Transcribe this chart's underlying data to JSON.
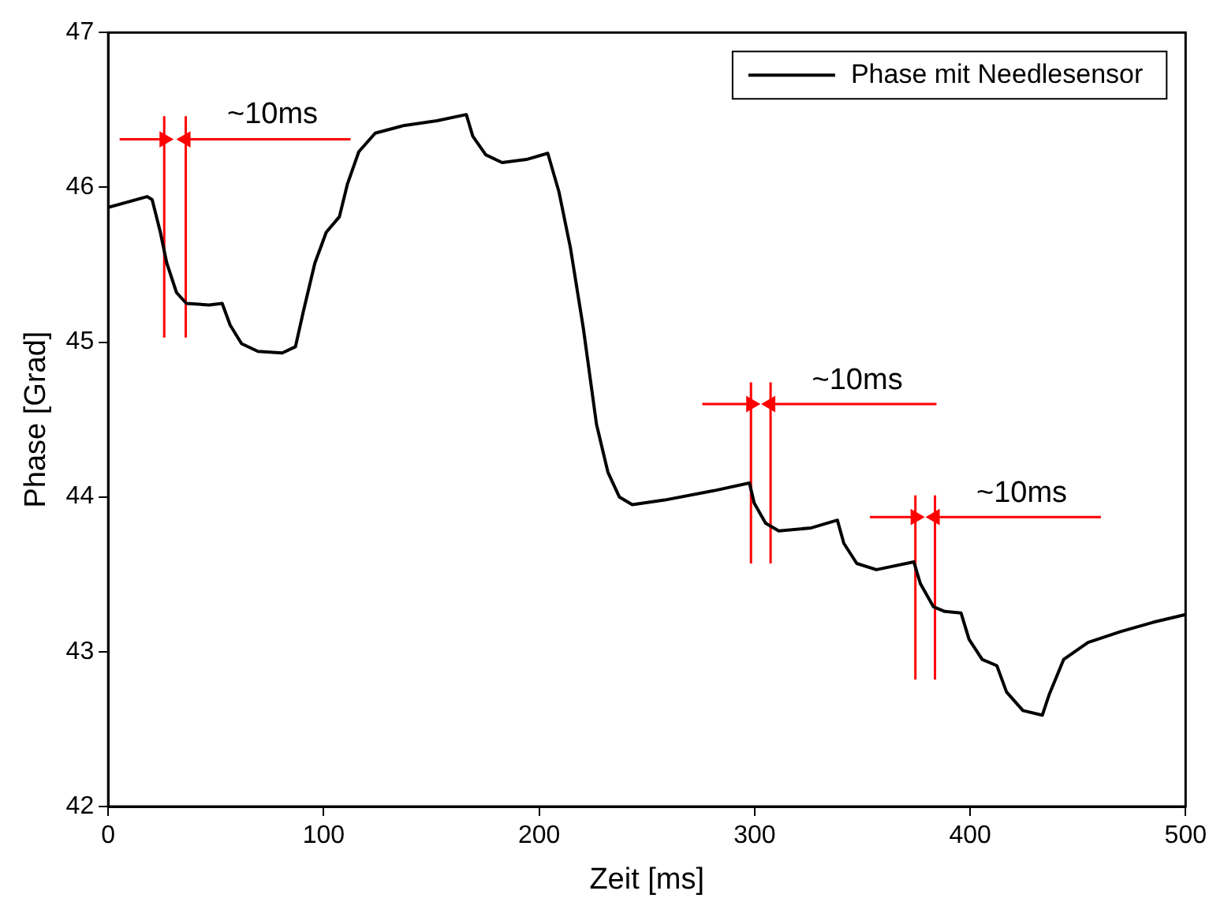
{
  "chart_data": {
    "type": "line",
    "xlabel": "Zeit [ms]",
    "ylabel": "Phase [Grad]",
    "xlim": [
      0,
      500
    ],
    "xticks": [
      0,
      100,
      200,
      300,
      400,
      500
    ],
    "ylim": [
      42,
      47
    ],
    "yticks": [
      42,
      43,
      44,
      45,
      46,
      47
    ],
    "grid": false,
    "legend": "top right",
    "marker": "none",
    "line_style": "solid",
    "series": [
      {
        "name": "Phase mit Needlesensor",
        "color": "#000000",
        "x": [
          0,
          18.1,
          20.4,
          24.2,
          27.2,
          31.7,
          36.3,
          46.8,
          52.9,
          56.6,
          61.9,
          69.5,
          80.8,
          86.9,
          90.6,
          95.9,
          101.2,
          107.3,
          111,
          116.3,
          123.9,
          137.5,
          152.6,
          166.2,
          169.2,
          175.2,
          182.8,
          194.1,
          204,
          209.2,
          214.5,
          220.5,
          226.6,
          231.9,
          237.2,
          243.2,
          258.3,
          281,
          297.6,
          299.8,
          305.1,
          311.2,
          326.3,
          338.4,
          341.4,
          347.4,
          356.5,
          373.9,
          376.9,
          383,
          388.2,
          395.8,
          399.5,
          405.6,
          412.4,
          416.9,
          424.5,
          433.5,
          436.6,
          443.4,
          454.7,
          469.8,
          484.9,
          500
        ],
        "values": [
          45.87,
          45.94,
          45.92,
          45.71,
          45.51,
          45.32,
          45.25,
          45.24,
          45.25,
          45.11,
          44.99,
          44.94,
          44.93,
          44.97,
          45.2,
          45.51,
          45.71,
          45.81,
          46.02,
          46.23,
          46.35,
          46.4,
          46.43,
          46.47,
          46.33,
          46.21,
          46.16,
          46.18,
          46.22,
          45.97,
          45.61,
          45.09,
          44.47,
          44.16,
          44,
          43.95,
          43.98,
          44.04,
          44.09,
          43.96,
          43.83,
          43.78,
          43.8,
          43.85,
          43.7,
          43.57,
          43.53,
          43.58,
          43.44,
          43.29,
          43.26,
          43.25,
          43.08,
          42.95,
          42.91,
          42.74,
          42.62,
          42.59,
          42.72,
          42.95,
          43.06,
          43.13,
          43.19,
          43.24
        ]
      },
      {
        "color": "#ff0000",
        "x": [
          26,
          26
        ],
        "values": [
          45.03,
          46.46
        ]
      },
      {
        "color": "#ff0000",
        "x": [
          36,
          36
        ],
        "values": [
          45.03,
          46.46
        ]
      },
      {
        "color": "#ff0000",
        "x": [
          5.3,
          26
        ],
        "values": [
          46.31,
          46.31
        ],
        "marker": "triangle"
      },
      {
        "color": "#ff0000",
        "x": [
          112.5,
          36
        ],
        "values": [
          46.31,
          46.31
        ],
        "marker": "triangle"
      },
      {
        "color": "#ff0000",
        "x": [
          298.3,
          298.3
        ],
        "values": [
          43.57,
          44.74
        ]
      },
      {
        "color": "#ff0000",
        "x": [
          307.4,
          307.4
        ],
        "values": [
          43.57,
          44.74
        ]
      },
      {
        "color": "#ff0000",
        "x": [
          275.7,
          298.3
        ],
        "values": [
          44.6,
          44.6
        ],
        "marker": "triangle"
      },
      {
        "color": "#ff0000",
        "x": [
          384.4,
          307.4
        ],
        "values": [
          44.6,
          44.6
        ],
        "marker": "triangle"
      },
      {
        "color": "#ff0000",
        "x": [
          374.6,
          374.6
        ],
        "values": [
          42.82,
          44.01
        ]
      },
      {
        "color": "#ff0000",
        "x": [
          383.7,
          383.7
        ],
        "values": [
          42.82,
          44.01
        ]
      },
      {
        "color": "#ff0000",
        "x": [
          353.5,
          374.6
        ],
        "values": [
          43.87,
          43.87
        ],
        "marker": "triangle"
      },
      {
        "color": "#ff0000",
        "x": [
          460.7,
          383.7
        ],
        "values": [
          43.87,
          43.87
        ],
        "marker": "triangle"
      }
    ],
    "annotations": [
      "~10ms",
      "~10ms",
      "~10ms"
    ]
  }
}
